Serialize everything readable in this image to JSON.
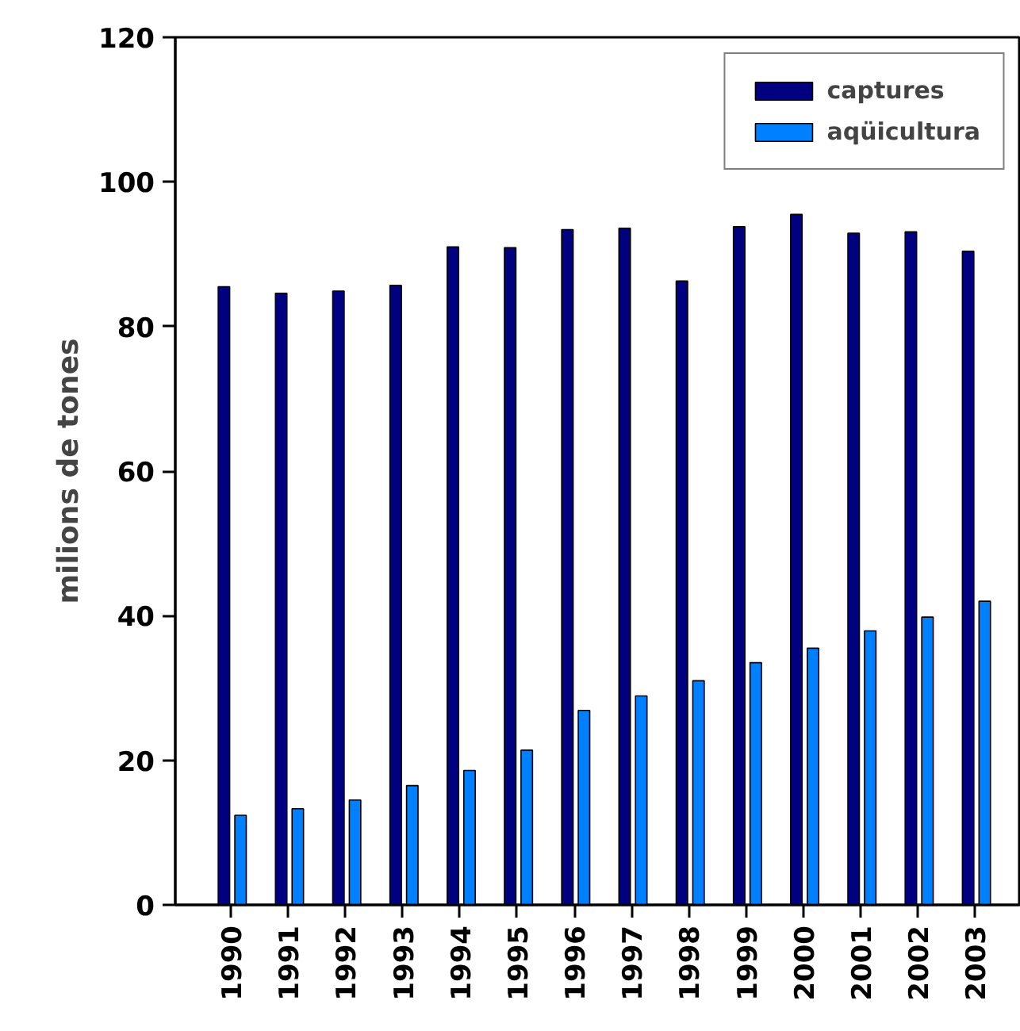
{
  "chart_data": {
    "type": "bar",
    "ylabel": "milions de tones",
    "categories": [
      "1990",
      "1991",
      "1992",
      "1993",
      "1994",
      "1995",
      "1996",
      "1997",
      "1998",
      "1999",
      "2000",
      "2001",
      "2002",
      "2003"
    ],
    "series": [
      {
        "name": "captures",
        "color": "#000080",
        "values": [
          85.5,
          84.6,
          84.9,
          85.7,
          91.0,
          90.9,
          93.4,
          93.6,
          86.3,
          93.8,
          95.5,
          92.9,
          93.1,
          90.4
        ]
      },
      {
        "name": "aqüicultura",
        "color": "#0080ff",
        "values": [
          12.4,
          13.3,
          14.5,
          16.5,
          18.6,
          21.4,
          26.9,
          28.9,
          31.0,
          33.5,
          35.5,
          37.9,
          39.8,
          42.0
        ]
      }
    ],
    "ylim": [
      0,
      120
    ],
    "yticks": [
      0,
      20,
      40,
      60,
      80,
      100,
      120
    ],
    "grid": false,
    "legend": "top right"
  }
}
